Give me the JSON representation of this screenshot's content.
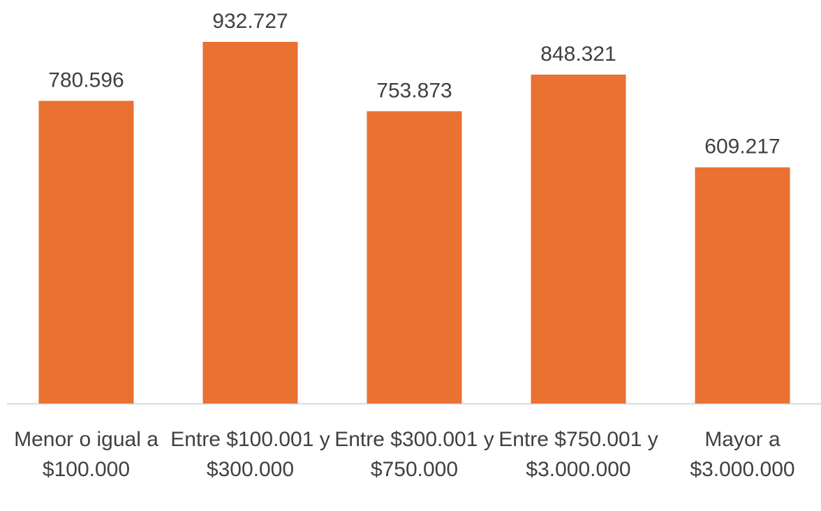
{
  "chart_data": {
    "type": "bar",
    "categories": [
      "Menor o igual a $100.000",
      "Entre $100.001 y $300.000",
      "Entre $300.001 y $750.000",
      "Entre $750.001 y $3.000.000",
      "Mayor a $3.000.000"
    ],
    "values": [
      780596,
      932727,
      753873,
      848321,
      609217
    ],
    "value_labels": [
      "780.596",
      "932.727",
      "753.873",
      "848.321",
      "609.217"
    ],
    "color": "#e97132"
  }
}
